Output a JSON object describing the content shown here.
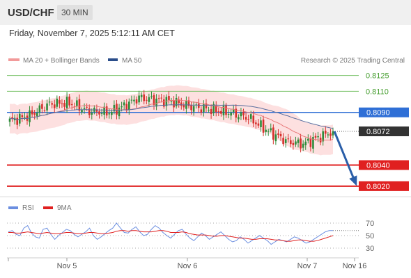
{
  "header": {
    "symbol": "USD/CHF",
    "interval": "30 MIN",
    "datetime": "Friday, November 7, 2025 5:12:11 AM CET"
  },
  "legend": {
    "ma20_bb": "MA 20 + Bollinger Bands",
    "ma50": "MA 50",
    "credit": "Research © 2025 Trading Central",
    "rsi": "RSI",
    "rsi_ma": "9MA"
  },
  "colors": {
    "up_candle": "#2e8b3a",
    "down_candle": "#d6302c",
    "bollinger_fill": "#fde0e0",
    "ma20": "#e8797a",
    "ma50": "#5a6e9e",
    "resistance_green": "#7ac26a",
    "pivot_blue": "#2f6fd6",
    "support_red": "#e02020",
    "forecast_arrow": "#2a5ea8",
    "rsi_line": "#6b8ee0",
    "rsi_ma_line": "#e02020"
  },
  "chart_data": [
    {
      "type": "candlestick",
      "x_labels": [
        "Nov 5",
        "Nov 6",
        "Nov 7",
        "Nov 16"
      ],
      "ylim": [
        0.8012,
        0.8132
      ],
      "price_levels": [
        {
          "value": 0.8125,
          "label": "0.8125",
          "kind": "resistance"
        },
        {
          "value": 0.811,
          "label": "0.8110",
          "kind": "resistance"
        },
        {
          "value": 0.809,
          "label": "0.8090",
          "kind": "pivot"
        },
        {
          "value": 0.804,
          "label": "0.8040",
          "kind": "support"
        },
        {
          "value": 0.802,
          "label": "0.8020",
          "kind": "support"
        }
      ],
      "current_price": {
        "value": 0.8072,
        "label": "0.8072"
      },
      "close_path": [
        {
          "i": 0,
          "close": 0.8082
        },
        {
          "i": 8,
          "close": 0.8087
        },
        {
          "i": 16,
          "close": 0.8098
        },
        {
          "i": 24,
          "close": 0.8099
        },
        {
          "i": 32,
          "close": 0.8091
        },
        {
          "i": 40,
          "close": 0.809
        },
        {
          "i": 46,
          "close": 0.8096
        },
        {
          "i": 52,
          "close": 0.8104
        },
        {
          "i": 58,
          "close": 0.8102
        },
        {
          "i": 64,
          "close": 0.8101
        },
        {
          "i": 72,
          "close": 0.8096
        },
        {
          "i": 80,
          "close": 0.8093
        },
        {
          "i": 88,
          "close": 0.809
        },
        {
          "i": 96,
          "close": 0.8085
        },
        {
          "i": 104,
          "close": 0.8072
        },
        {
          "i": 112,
          "close": 0.8062
        },
        {
          "i": 118,
          "close": 0.806
        },
        {
          "i": 124,
          "close": 0.8066
        },
        {
          "i": 130,
          "close": 0.8072
        }
      ],
      "forecast": {
        "from": 0.8072,
        "to": 0.802
      }
    },
    {
      "type": "line",
      "title": "RSI",
      "ylim": [
        20,
        80
      ],
      "y_ticks": [
        70,
        50,
        30
      ],
      "series": [
        {
          "name": "RSI",
          "values": [
            56,
            58,
            52,
            50,
            62,
            66,
            54,
            48,
            46,
            60,
            62,
            52,
            44,
            50,
            55,
            60,
            58,
            52,
            48,
            52,
            56,
            62,
            50,
            44,
            48,
            53,
            58,
            62,
            70,
            62,
            55,
            54,
            60,
            64,
            56,
            50,
            52,
            60,
            66,
            62,
            55,
            50,
            46,
            52,
            58,
            60,
            52,
            46,
            42,
            48,
            54,
            50,
            44,
            48,
            52,
            56,
            50,
            44,
            40,
            42,
            48,
            44,
            38,
            42,
            46,
            50,
            46,
            42,
            36,
            40,
            44,
            42,
            40,
            44,
            48,
            46,
            42,
            38,
            40,
            44,
            48,
            52,
            56,
            58,
            58
          ]
        },
        {
          "name": "9MA",
          "values": [
            55,
            55,
            54,
            54,
            55,
            56,
            55,
            54,
            53,
            54,
            55,
            54,
            53,
            53,
            54,
            55,
            55,
            54,
            53,
            53,
            54,
            55,
            55,
            54,
            53,
            53,
            54,
            55,
            57,
            58,
            58,
            57,
            58,
            58,
            57,
            56,
            56,
            56,
            57,
            58,
            58,
            57,
            55,
            55,
            55,
            56,
            55,
            53,
            52,
            51,
            51,
            51,
            50,
            49,
            49,
            50,
            50,
            49,
            48,
            47,
            46,
            46,
            45,
            44,
            44,
            45,
            45,
            45,
            44,
            43,
            43,
            42,
            41,
            41,
            42,
            43,
            43,
            42,
            41,
            41,
            42,
            44,
            46,
            48,
            50
          ]
        }
      ]
    }
  ]
}
